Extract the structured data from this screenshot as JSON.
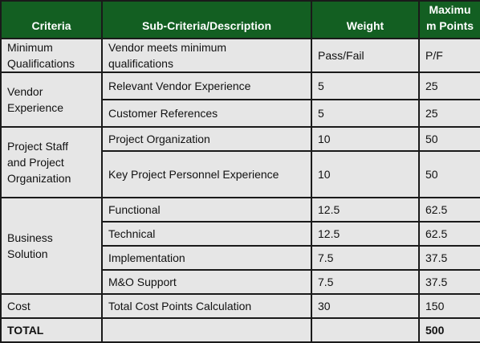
{
  "headers": {
    "criteria": "Criteria",
    "sub_criteria": "Sub-Criteria/Description",
    "weight": "Weight",
    "max_points_line1": "Maximu",
    "max_points_line2": "m Points"
  },
  "groups": [
    {
      "criteria_line1": "Minimum",
      "criteria_line2": "Qualifications",
      "rows": [
        {
          "sub_line1": "Vendor meets minimum",
          "sub_line2": "qualifications",
          "weight": "Pass/Fail",
          "max": "P/F"
        }
      ]
    },
    {
      "criteria_line1": "Vendor",
      "criteria_line2": "Experience",
      "rows": [
        {
          "sub": "Relevant Vendor Experience",
          "weight": "5",
          "max": "25"
        },
        {
          "sub": "Customer References",
          "weight": "5",
          "max": "25"
        }
      ]
    },
    {
      "criteria_line1": "Project Staff",
      "criteria_line2": "and Project",
      "criteria_line3": "Organization",
      "rows": [
        {
          "sub": "Project Organization",
          "weight": "10",
          "max": "50"
        },
        {
          "sub": "Key Project Personnel Experience",
          "weight": "10",
          "max": "50"
        }
      ]
    },
    {
      "criteria_line1": "Business",
      "criteria_line2": "Solution",
      "rows": [
        {
          "sub": "Functional",
          "weight": "12.5",
          "max": "62.5"
        },
        {
          "sub": "Technical",
          "weight": "12.5",
          "max": "62.5"
        },
        {
          "sub": "Implementation",
          "weight": "7.5",
          "max": "37.5"
        },
        {
          "sub": "M&O Support",
          "weight": "7.5",
          "max": "37.5"
        }
      ]
    },
    {
      "criteria": "Cost",
      "rows": [
        {
          "sub": "Total Cost Points Calculation",
          "weight": "30",
          "max": "150"
        }
      ]
    }
  ],
  "total": {
    "label": "TOTAL",
    "sub": "",
    "weight": "",
    "max": "500"
  }
}
